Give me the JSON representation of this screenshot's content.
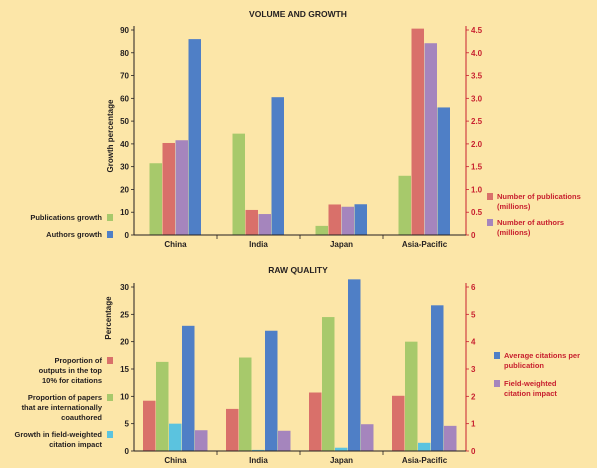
{
  "chart_data": [
    {
      "type": "bar",
      "title": "VOLUME AND GROWTH",
      "categories": [
        "China",
        "India",
        "Japan",
        "Asia-Pacific"
      ],
      "ylabel": "Growth percentage",
      "ylim": [
        0,
        90
      ],
      "yticks": [
        "0",
        "10",
        "20",
        "30",
        "40",
        "50",
        "60",
        "70",
        "80",
        "90"
      ],
      "y2lim": [
        0,
        4.5
      ],
      "y2ticks": [
        "0",
        "0.5",
        "1.0",
        "1.5",
        "2.0",
        "2.5",
        "3.0",
        "3.5",
        "4.0",
        "4.5"
      ],
      "grid": false,
      "series": [
        {
          "name": "Publications growth",
          "axis": "left",
          "color": "#A7C96B",
          "values": [
            31.5,
            44.5,
            4,
            26
          ]
        },
        {
          "name": "Number of publications (millions)",
          "axis": "right",
          "color": "#D9706A",
          "values": [
            2.02,
            0.55,
            0.67,
            4.53
          ]
        },
        {
          "name": "Number of authors (millions)",
          "axis": "right",
          "color": "#A585BD",
          "values": [
            2.08,
            0.46,
            0.62,
            4.21
          ]
        },
        {
          "name": "Authors growth",
          "axis": "left",
          "color": "#4F7FC6",
          "values": [
            86,
            60.5,
            13.5,
            56
          ]
        }
      ],
      "legend_left": [
        "Publications growth",
        "Authors growth"
      ],
      "legend_right": [
        "Number of publications (millions)",
        "Number of authors (millions)"
      ]
    },
    {
      "type": "bar",
      "title": "RAW QUALITY",
      "categories": [
        "China",
        "India",
        "Japan",
        "Asia-Pacific"
      ],
      "ylabel": "Percentage",
      "ylim": [
        0,
        30
      ],
      "yticks": [
        "0",
        "5",
        "10",
        "15",
        "20",
        "25",
        "30"
      ],
      "y2lim": [
        0,
        6
      ],
      "y2ticks": [
        "0",
        "1",
        "2",
        "3",
        "4",
        "5",
        "6"
      ],
      "grid": false,
      "series": [
        {
          "name": "Proportion of outputs in the top 10% for citations",
          "axis": "left",
          "color": "#D9706A",
          "values": [
            9.2,
            7.7,
            10.7,
            10.1
          ]
        },
        {
          "name": "Proportion of papers that are internationally coauthored",
          "axis": "left",
          "color": "#A7C96B",
          "values": [
            16.3,
            17.1,
            24.5,
            20
          ]
        },
        {
          "name": "Growth in field-weighted citation impact",
          "axis": "left",
          "color": "#5BC3DF",
          "values": [
            5,
            0.2,
            0.6,
            1.5
          ]
        },
        {
          "name": "Average citations per publication",
          "axis": "right",
          "color": "#4F7FC6",
          "values": [
            4.58,
            4.4,
            6.28,
            5.33
          ]
        },
        {
          "name": "Field-weighted citation impact",
          "axis": "right",
          "color": "#A585BD",
          "values": [
            0.76,
            0.74,
            0.98,
            0.92
          ]
        }
      ],
      "legend_left": [
        "Proportion of outputs in the top 10% for citations",
        "Proportion of papers that are internationally coauthored",
        "Growth in field-weighted citation impact"
      ],
      "legend_right": [
        "Average citations per publication",
        "Field-weighted citation impact"
      ]
    }
  ]
}
